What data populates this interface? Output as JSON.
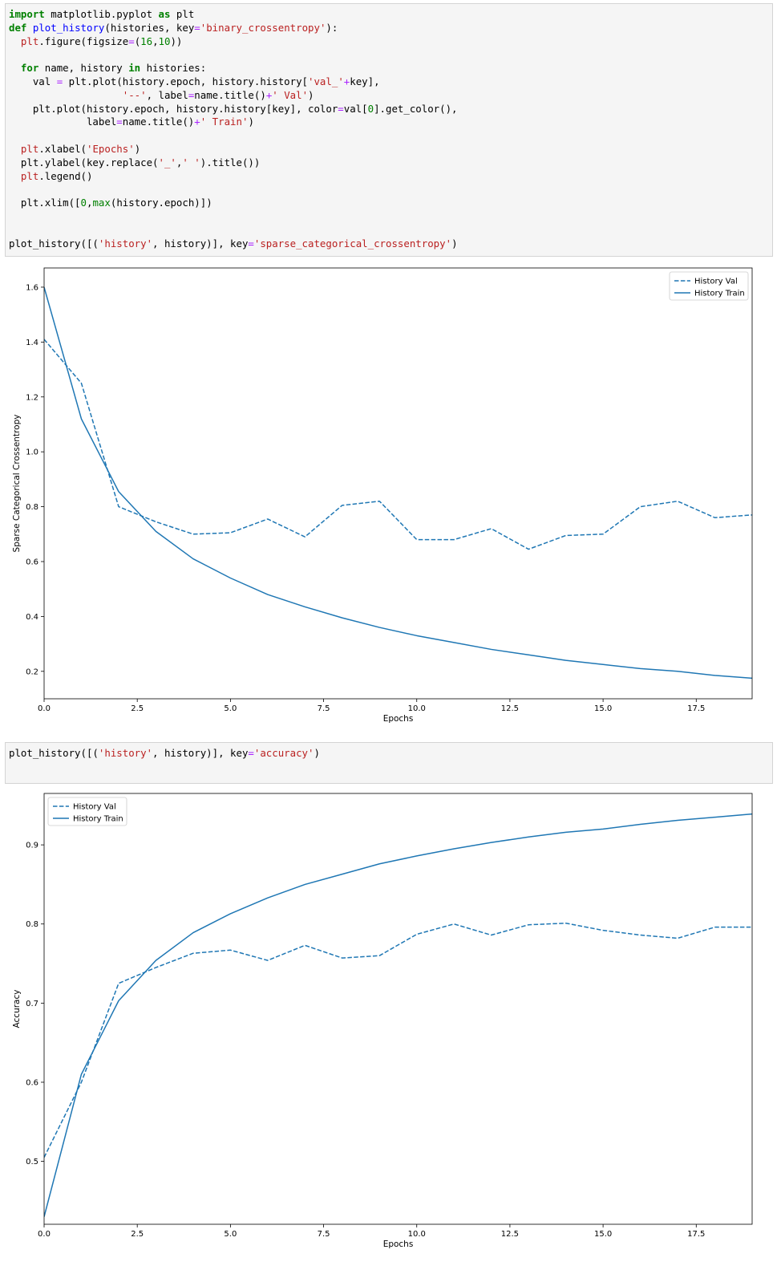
{
  "cells": [
    {
      "lines": [
        [
          [
            "kw",
            "import"
          ],
          [
            "t",
            " matplotlib.pyplot "
          ],
          [
            "kw",
            "as"
          ],
          [
            "t",
            " plt"
          ]
        ],
        [
          [
            "kw",
            "def"
          ],
          [
            "t",
            " "
          ],
          [
            "fn",
            "plot_history"
          ],
          [
            "t",
            "(histories, key"
          ],
          [
            "op",
            "="
          ],
          [
            "st",
            "'binary_crossentropy'"
          ],
          [
            "t",
            "):"
          ]
        ],
        [
          [
            "t",
            "  "
          ],
          [
            "st",
            "plt"
          ],
          [
            "t",
            ".figure(figsize"
          ],
          [
            "op",
            "="
          ],
          [
            "t",
            "("
          ],
          [
            "nm",
            "16"
          ],
          [
            "t",
            ","
          ],
          [
            "nm",
            "10"
          ],
          [
            "t",
            "))"
          ]
        ],
        [
          [
            "t",
            ""
          ]
        ],
        [
          [
            "t",
            "  "
          ],
          [
            "kw",
            "for"
          ],
          [
            "t",
            " name, history "
          ],
          [
            "kw",
            "in"
          ],
          [
            "t",
            " histories:"
          ]
        ],
        [
          [
            "t",
            "    val "
          ],
          [
            "op",
            "="
          ],
          [
            "t",
            " plt.plot(history.epoch, history.history["
          ],
          [
            "st",
            "'val_'"
          ],
          [
            "op",
            "+"
          ],
          [
            "t",
            "key],"
          ]
        ],
        [
          [
            "t",
            "                   "
          ],
          [
            "st",
            "'--'"
          ],
          [
            "t",
            ", label"
          ],
          [
            "op",
            "="
          ],
          [
            "t",
            "name.title()"
          ],
          [
            "op",
            "+"
          ],
          [
            "st",
            "' Val'"
          ],
          [
            "t",
            ")"
          ]
        ],
        [
          [
            "t",
            "    plt.plot(history.epoch, history.history[key], color"
          ],
          [
            "op",
            "="
          ],
          [
            "t",
            "val["
          ],
          [
            "nm",
            "0"
          ],
          [
            "t",
            "].get_color(),"
          ]
        ],
        [
          [
            "t",
            "             label"
          ],
          [
            "op",
            "="
          ],
          [
            "t",
            "name.title()"
          ],
          [
            "op",
            "+"
          ],
          [
            "st",
            "' Train'"
          ],
          [
            "t",
            ")"
          ]
        ],
        [
          [
            "t",
            ""
          ]
        ],
        [
          [
            "t",
            "  "
          ],
          [
            "st",
            "plt"
          ],
          [
            "t",
            ".xlabel("
          ],
          [
            "st",
            "'Epochs'"
          ],
          [
            "t",
            ")"
          ]
        ],
        [
          [
            "t",
            "  plt.ylabel(key.replace("
          ],
          [
            "st",
            "'_'"
          ],
          [
            "t",
            ","
          ],
          [
            "st",
            "' '"
          ],
          [
            "t",
            ").title())"
          ]
        ],
        [
          [
            "t",
            "  "
          ],
          [
            "st",
            "plt"
          ],
          [
            "t",
            ".legend()"
          ]
        ],
        [
          [
            "t",
            ""
          ]
        ],
        [
          [
            "t",
            "  plt.xlim(["
          ],
          [
            "nm",
            "0"
          ],
          [
            "t",
            ","
          ],
          [
            "nm",
            "max"
          ],
          [
            "t",
            "(history.epoch)])"
          ]
        ],
        [
          [
            "t",
            ""
          ]
        ],
        [
          [
            "t",
            ""
          ]
        ],
        [
          [
            "t",
            "plot_history([("
          ],
          [
            "st",
            "'history'"
          ],
          [
            "t",
            ", history)], key"
          ],
          [
            "op",
            "="
          ],
          [
            "st",
            "'sparse_categorical_crossentropy'"
          ],
          [
            "t",
            ")"
          ]
        ]
      ]
    },
    {
      "lines": [
        [
          [
            "t",
            "plot_history([("
          ],
          [
            "st",
            "'history'"
          ],
          [
            "t",
            ", history)], key"
          ],
          [
            "op",
            "="
          ],
          [
            "st",
            "'accuracy'"
          ],
          [
            "t",
            ")"
          ]
        ]
      ]
    }
  ],
  "colors": {
    "series": "#1f77b4",
    "axes": "#000000"
  },
  "chart_data": [
    {
      "type": "line",
      "xlabel": "Epochs",
      "ylabel": "Sparse Categorical Crossentropy",
      "xlim": [
        0,
        19
      ],
      "ylim": [
        0.1,
        1.67
      ],
      "xticks": [
        "0.0",
        "2.5",
        "5.0",
        "7.5",
        "10.0",
        "12.5",
        "15.0",
        "17.5"
      ],
      "yticks": [
        "0.2",
        "0.4",
        "0.6",
        "0.8",
        "1.0",
        "1.2",
        "1.4",
        "1.6"
      ],
      "legend_loc": "top-right",
      "x": [
        0,
        1,
        2,
        3,
        4,
        5,
        6,
        7,
        8,
        9,
        10,
        11,
        12,
        13,
        14,
        15,
        16,
        17,
        18,
        19
      ],
      "series": [
        {
          "name": "History Val",
          "style": "dashed",
          "values": [
            1.41,
            1.25,
            0.8,
            0.745,
            0.7,
            0.705,
            0.755,
            0.69,
            0.805,
            0.82,
            0.68,
            0.68,
            0.72,
            0.645,
            0.695,
            0.7,
            0.8,
            0.82,
            0.76,
            0.77
          ]
        },
        {
          "name": "History Train",
          "style": "solid",
          "values": [
            1.6,
            1.12,
            0.855,
            0.71,
            0.61,
            0.54,
            0.48,
            0.435,
            0.395,
            0.36,
            0.33,
            0.305,
            0.28,
            0.26,
            0.24,
            0.225,
            0.21,
            0.2,
            0.185,
            0.175
          ]
        }
      ]
    },
    {
      "type": "line",
      "xlabel": "Epochs",
      "ylabel": "Accuracy",
      "xlim": [
        0,
        19
      ],
      "ylim": [
        0.4205,
        0.965
      ],
      "xticks": [
        "0.0",
        "2.5",
        "5.0",
        "7.5",
        "10.0",
        "12.5",
        "15.0",
        "17.5"
      ],
      "yticks": [
        "0.5",
        "0.6",
        "0.7",
        "0.8",
        "0.9"
      ],
      "legend_loc": "top-left",
      "x": [
        0,
        1,
        2,
        3,
        4,
        5,
        6,
        7,
        8,
        9,
        10,
        11,
        12,
        13,
        14,
        15,
        16,
        17,
        18,
        19
      ],
      "series": [
        {
          "name": "History Val",
          "style": "dashed",
          "values": [
            0.505,
            0.6,
            0.725,
            0.745,
            0.763,
            0.767,
            0.754,
            0.773,
            0.757,
            0.76,
            0.787,
            0.8,
            0.786,
            0.799,
            0.801,
            0.792,
            0.786,
            0.782,
            0.796,
            0.796
          ]
        },
        {
          "name": "History Train",
          "style": "solid",
          "values": [
            0.43,
            0.61,
            0.703,
            0.754,
            0.789,
            0.813,
            0.833,
            0.85,
            0.863,
            0.876,
            0.886,
            0.895,
            0.903,
            0.91,
            0.916,
            0.92,
            0.926,
            0.931,
            0.935,
            0.939
          ]
        }
      ]
    }
  ]
}
